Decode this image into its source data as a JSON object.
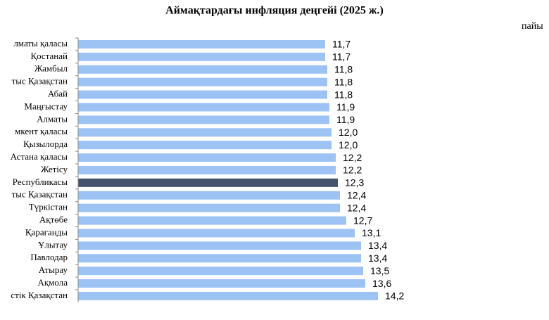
{
  "chart_data": {
    "type": "hbar",
    "title": "Аймақтардағы инфляция деңгейі (2025 ж.)",
    "unit_label": "пайы",
    "categories": [
      "лматы қаласы",
      "Қостанай",
      "Жамбыл",
      "тыс Қазақстан",
      "Абай",
      "Маңғыстау",
      "Алматы",
      "мкент қаласы",
      "Қызылорда",
      "Астана қаласы",
      "Жетісу",
      "Республикасы",
      "тыс Қазақстан",
      "Түркістан",
      "Ақтөбе",
      "Қарағанды",
      "Ұлытау",
      "Павлодар",
      "Атырау",
      "Ақмола",
      "стік Қазақстан"
    ],
    "values": [
      11.7,
      11.7,
      11.8,
      11.8,
      11.8,
      11.9,
      11.9,
      12.0,
      12.0,
      12.2,
      12.2,
      12.3,
      12.4,
      12.4,
      12.7,
      13.1,
      13.4,
      13.4,
      13.5,
      13.6,
      14.2
    ],
    "value_labels": [
      "11,7",
      "11,7",
      "11,8",
      "11,8",
      "11,8",
      "11,9",
      "11,9",
      "12,0",
      "12,0",
      "12,2",
      "12,2",
      "12,3",
      "12,4",
      "12,4",
      "12,7",
      "13,1",
      "13,4",
      "13,4",
      "13,5",
      "13,6",
      "14,2"
    ],
    "colors": [
      "#9dc3f5",
      "#9dc3f5",
      "#9dc3f5",
      "#9dc3f5",
      "#9dc3f5",
      "#9dc3f5",
      "#9dc3f5",
      "#9dc3f5",
      "#9dc3f5",
      "#9dc3f5",
      "#9dc3f5",
      "#44546a",
      "#9dc3f5",
      "#9dc3f5",
      "#9dc3f5",
      "#9dc3f5",
      "#9dc3f5",
      "#9dc3f5",
      "#9dc3f5",
      "#9dc3f5",
      "#9dc3f5"
    ],
    "xlim": [
      0,
      22
    ]
  }
}
